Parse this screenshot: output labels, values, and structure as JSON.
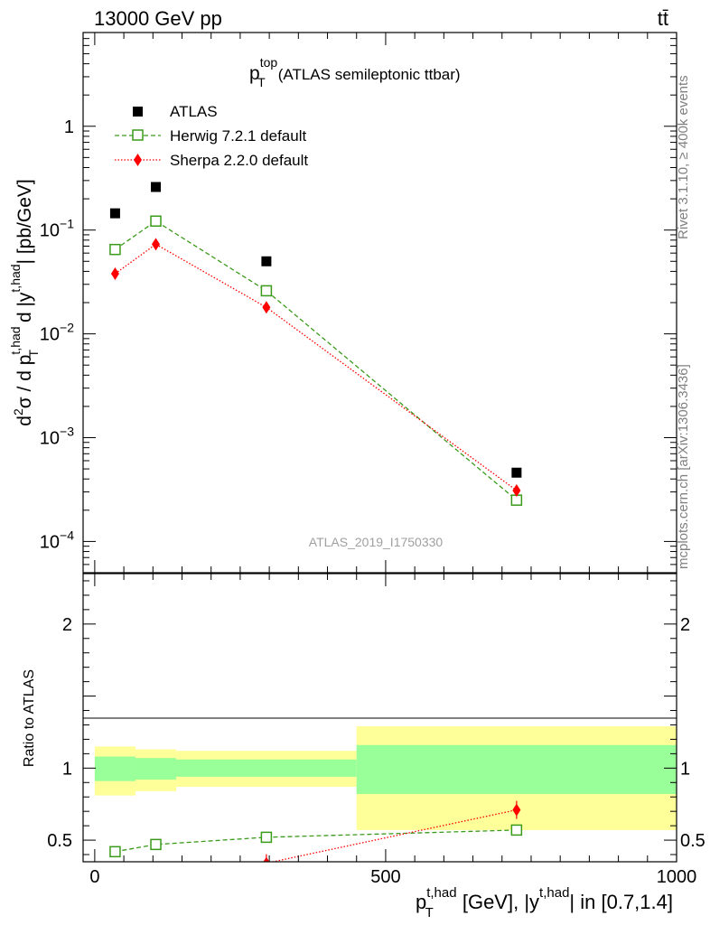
{
  "header": {
    "left": "13000 GeV pp",
    "right": "tt̄"
  },
  "side_labels": {
    "rivet": "Rivet 3.1.10, ≥ 400k events",
    "mcplots": "mcplots.cern.ch [arXiv:1306.3436]"
  },
  "chart_data": [
    {
      "type": "scatter",
      "panel": "main",
      "title": "p_T^top (ATLAS semileptonic ttbar)",
      "title_parts": {
        "base": "p",
        "sup": "top",
        "sub": "T",
        "rest": "(ATLAS semileptonic ttbar)"
      },
      "ylabel": "d²σ / d p_T^{t,had} d |y^{t,had}| [pb/GeV]",
      "xlabel": "p_T^{t,had} [GeV], |y^{t,had}| in [0.7,1.4]",
      "watermark": "ATLAS_2019_I1750330",
      "y_scale": "log",
      "xlim": [
        -20,
        1000
      ],
      "ylim": [
        5e-05,
        8
      ],
      "y_ticks": [
        {
          "value": 0.0001,
          "base": "10",
          "exp": "−4"
        },
        {
          "value": 0.001,
          "base": "10",
          "exp": "−3"
        },
        {
          "value": 0.01,
          "base": "10",
          "exp": "−2"
        },
        {
          "value": 0.1,
          "base": "10",
          "exp": "−1"
        },
        {
          "value": 1,
          "base": "1",
          "exp": ""
        }
      ],
      "legend_position": "top-left",
      "series": [
        {
          "name": "ATLAS",
          "marker": "square-filled",
          "color": "#000000",
          "x": [
            35,
            105,
            295,
            725
          ],
          "y": [
            0.145,
            0.26,
            0.05,
            0.00046
          ]
        },
        {
          "name": "Herwig 7.2.1 default",
          "marker": "square-open",
          "line": "dashed",
          "color": "#3a9a1a",
          "x": [
            35,
            105,
            295,
            725
          ],
          "y": [
            0.065,
            0.122,
            0.026,
            0.00025
          ]
        },
        {
          "name": "Sherpa 2.2.0 default",
          "marker": "diamond",
          "line": "dotted",
          "color": "#ff0000",
          "x": [
            35,
            105,
            295,
            725
          ],
          "y": [
            0.038,
            0.073,
            0.018,
            0.00031
          ]
        }
      ]
    },
    {
      "type": "line",
      "panel": "ratio",
      "ylabel": "Ratio to ATLAS",
      "xlim": [
        -20,
        1000
      ],
      "ylim": [
        0.35,
        2.35
      ],
      "x_ticks": [
        0,
        500,
        1000
      ],
      "y_ticks": [
        0.5,
        1,
        2
      ],
      "bands": [
        {
          "xmin": 0,
          "xmax": 70,
          "inner": [
            0.91,
            1.08
          ],
          "outer": [
            0.81,
            1.15
          ]
        },
        {
          "xmin": 70,
          "xmax": 140,
          "inner": [
            0.92,
            1.07
          ],
          "outer": [
            0.84,
            1.13
          ]
        },
        {
          "xmin": 140,
          "xmax": 450,
          "inner": [
            0.94,
            1.06
          ],
          "outer": [
            0.87,
            1.12
          ]
        },
        {
          "xmin": 450,
          "xmax": 1000,
          "inner": [
            0.82,
            1.16
          ],
          "outer": [
            0.57,
            1.29
          ]
        }
      ],
      "series": [
        {
          "name": "Herwig 7.2.1 default",
          "color": "#3a9a1a",
          "x": [
            35,
            105,
            295,
            725
          ],
          "y": [
            0.42,
            0.47,
            0.52,
            0.57
          ]
        },
        {
          "name": "Sherpa 2.2.0 default",
          "color": "#ff0000",
          "x": [
            35,
            105,
            295,
            725
          ],
          "y": [
            0.26,
            0.29,
            0.34,
            0.71
          ]
        }
      ]
    }
  ],
  "colors": {
    "band_inner": "#99ff99",
    "band_outer": "#ffff99",
    "herwig": "#3a9a1a",
    "sherpa": "#ff0000",
    "atlas": "#000000",
    "watermark": "#a0a0a0"
  }
}
